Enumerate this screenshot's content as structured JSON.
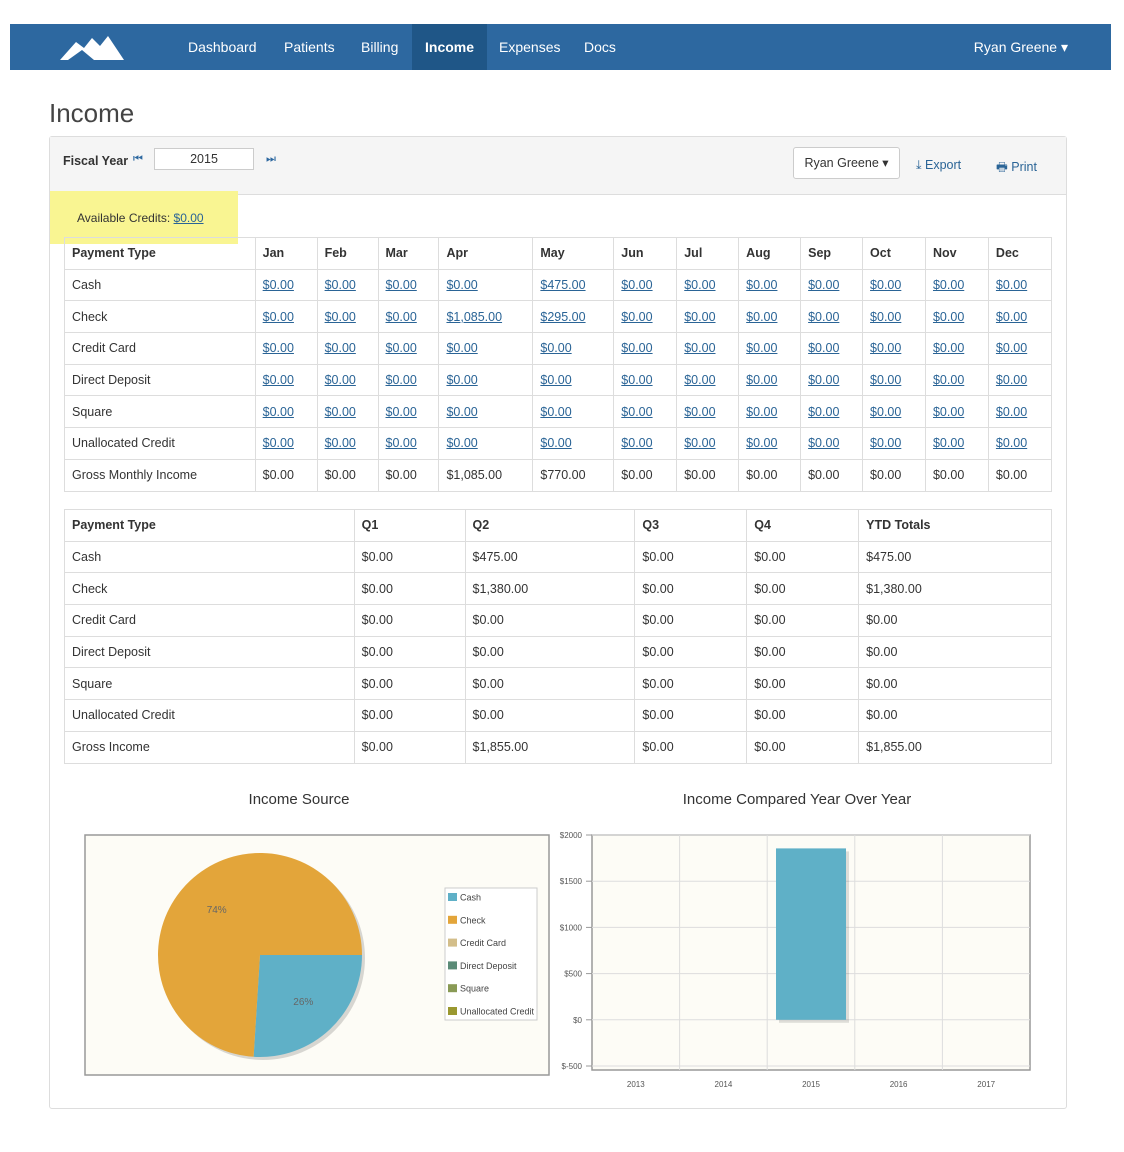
{
  "nav": {
    "items": [
      "Dashboard",
      "Patients",
      "Billing",
      "Income",
      "Expenses",
      "Docs"
    ],
    "active": 3,
    "user": "Ryan Greene"
  },
  "page_title": "Income",
  "toolbar": {
    "fiscal_year_label": "Fiscal Year",
    "year": "2015",
    "user": "Ryan Greene",
    "export": "Export",
    "print": "Print"
  },
  "credits": {
    "label": "Available Credits:",
    "value": "$0.00"
  },
  "monthly_table": {
    "header": [
      "Payment Type",
      "Jan",
      "Feb",
      "Mar",
      "Apr",
      "May",
      "Jun",
      "Jul",
      "Aug",
      "Sep",
      "Oct",
      "Nov",
      "Dec"
    ],
    "rows": [
      [
        "Cash",
        "$0.00",
        "$0.00",
        "$0.00",
        "$0.00",
        "$475.00",
        "$0.00",
        "$0.00",
        "$0.00",
        "$0.00",
        "$0.00",
        "$0.00",
        "$0.00"
      ],
      [
        "Check",
        "$0.00",
        "$0.00",
        "$0.00",
        "$1,085.00",
        "$295.00",
        "$0.00",
        "$0.00",
        "$0.00",
        "$0.00",
        "$0.00",
        "$0.00",
        "$0.00"
      ],
      [
        "Credit Card",
        "$0.00",
        "$0.00",
        "$0.00",
        "$0.00",
        "$0.00",
        "$0.00",
        "$0.00",
        "$0.00",
        "$0.00",
        "$0.00",
        "$0.00",
        "$0.00"
      ],
      [
        "Direct Deposit",
        "$0.00",
        "$0.00",
        "$0.00",
        "$0.00",
        "$0.00",
        "$0.00",
        "$0.00",
        "$0.00",
        "$0.00",
        "$0.00",
        "$0.00",
        "$0.00"
      ],
      [
        "Square",
        "$0.00",
        "$0.00",
        "$0.00",
        "$0.00",
        "$0.00",
        "$0.00",
        "$0.00",
        "$0.00",
        "$0.00",
        "$0.00",
        "$0.00",
        "$0.00"
      ],
      [
        "Unallocated Credit",
        "$0.00",
        "$0.00",
        "$0.00",
        "$0.00",
        "$0.00",
        "$0.00",
        "$0.00",
        "$0.00",
        "$0.00",
        "$0.00",
        "$0.00",
        "$0.00"
      ],
      [
        "Gross Monthly Income",
        "$0.00",
        "$0.00",
        "$0.00",
        "$1,085.00",
        "$770.00",
        "$0.00",
        "$0.00",
        "$0.00",
        "$0.00",
        "$0.00",
        "$0.00",
        "$0.00"
      ]
    ]
  },
  "quarterly_table": {
    "header": [
      "Payment Type",
      "Q1",
      "Q2",
      "Q3",
      "Q4",
      "YTD Totals"
    ],
    "rows": [
      [
        "Cash",
        "$0.00",
        "$475.00",
        "$0.00",
        "$0.00",
        "$475.00"
      ],
      [
        "Check",
        "$0.00",
        "$1,380.00",
        "$0.00",
        "$0.00",
        "$1,380.00"
      ],
      [
        "Credit Card",
        "$0.00",
        "$0.00",
        "$0.00",
        "$0.00",
        "$0.00"
      ],
      [
        "Direct Deposit",
        "$0.00",
        "$0.00",
        "$0.00",
        "$0.00",
        "$0.00"
      ],
      [
        "Square",
        "$0.00",
        "$0.00",
        "$0.00",
        "$0.00",
        "$0.00"
      ],
      [
        "Unallocated Credit",
        "$0.00",
        "$0.00",
        "$0.00",
        "$0.00",
        "$0.00"
      ],
      [
        "Gross Income",
        "$0.00",
        "$1,855.00",
        "$0.00",
        "$0.00",
        "$1,855.00"
      ]
    ]
  },
  "chart_data": [
    {
      "type": "pie",
      "title": "Income Source",
      "categories": [
        "Cash",
        "Check",
        "Credit Card",
        "Direct Deposit",
        "Square",
        "Unallocated Credit"
      ],
      "values": [
        26,
        74,
        0,
        0,
        0,
        0
      ],
      "value_labels": [
        "26%",
        "74%",
        null,
        null,
        null,
        null
      ],
      "colors": [
        "#5fb0c7",
        "#e3a53a",
        "#d3be8a",
        "#5b8b77",
        "#899a55",
        "#9a9830"
      ]
    },
    {
      "type": "bar",
      "title": "Income Compared Year Over Year",
      "categories": [
        "2013",
        "2014",
        "2015",
        "2016",
        "2017"
      ],
      "values": [
        0,
        0,
        1855,
        0,
        0
      ],
      "color": "#5fb0c7",
      "ylim": [
        -500,
        2000
      ],
      "yticks": [
        {
          "value": -500,
          "label": "$-500"
        },
        {
          "value": 0,
          "label": "$0"
        },
        {
          "value": 500,
          "label": "$500"
        },
        {
          "value": 1000,
          "label": "$1000"
        },
        {
          "value": 1500,
          "label": "$1500"
        },
        {
          "value": 2000,
          "label": "$2000"
        }
      ],
      "grid": true
    }
  ]
}
